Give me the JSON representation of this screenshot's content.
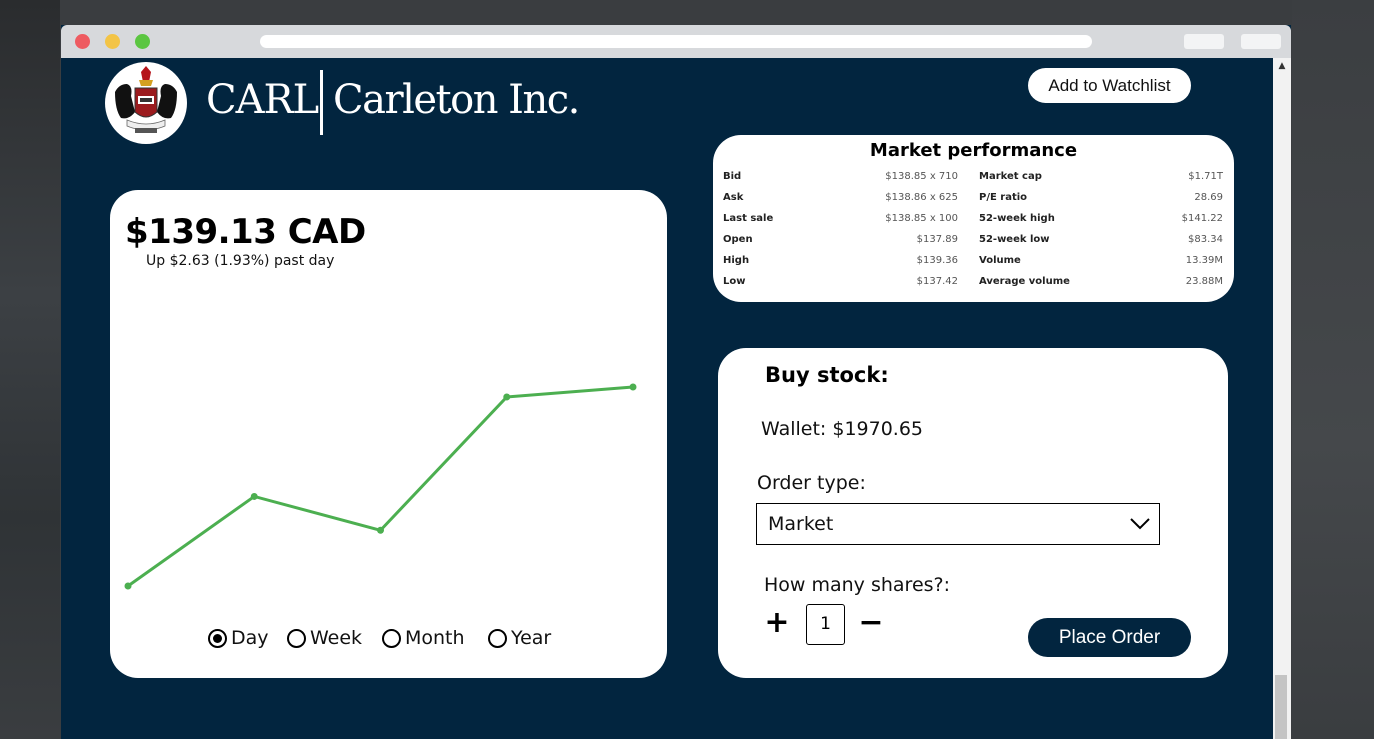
{
  "brand": {
    "ticker": "CARL",
    "company": "Carleton Inc."
  },
  "header": {
    "watchlist_label": "Add to Watchlist"
  },
  "quote": {
    "price": "$139.13 CAD",
    "change": "Up $2.63 (1.93%) past day"
  },
  "chart_data": {
    "type": "line",
    "title": "",
    "x": [
      1,
      2,
      3,
      4,
      5
    ],
    "values": [
      0.0,
      0.45,
      0.28,
      0.95,
      1.0
    ],
    "xlabel": "",
    "ylabel": "",
    "grid": false,
    "color": "#4caf50"
  },
  "ranges": [
    {
      "label": "Day",
      "selected": true
    },
    {
      "label": "Week",
      "selected": false
    },
    {
      "label": "Month",
      "selected": false
    },
    {
      "label": "Year",
      "selected": false
    }
  ],
  "performance": {
    "title": "Market performance",
    "left": [
      {
        "label": "Bid",
        "value": "$138.85 x 710"
      },
      {
        "label": "Ask",
        "value": "$138.86 x 625"
      },
      {
        "label": "Last sale",
        "value": "$138.85 x 100"
      },
      {
        "label": "Open",
        "value": "$137.89"
      },
      {
        "label": "High",
        "value": "$139.36"
      },
      {
        "label": "Low",
        "value": "$137.42"
      }
    ],
    "right": [
      {
        "label": "Market cap",
        "value": "$1.71T"
      },
      {
        "label": "P/E ratio",
        "value": "28.69"
      },
      {
        "label": "52-week high",
        "value": "$141.22"
      },
      {
        "label": "52-week low",
        "value": "$83.34"
      },
      {
        "label": "Volume",
        "value": "13.39M"
      },
      {
        "label": "Average volume",
        "value": "23.88M"
      }
    ]
  },
  "buy": {
    "title": "Buy stock:",
    "wallet": "Wallet: $1970.65",
    "order_label": "Order type:",
    "order_value": "Market",
    "shares_label": "How many shares?:",
    "plus": "+",
    "quantity": "1",
    "minus": "−",
    "place_label": "Place Order"
  },
  "colors": {
    "navy": "#02253f",
    "accent_green": "#4caf50"
  }
}
